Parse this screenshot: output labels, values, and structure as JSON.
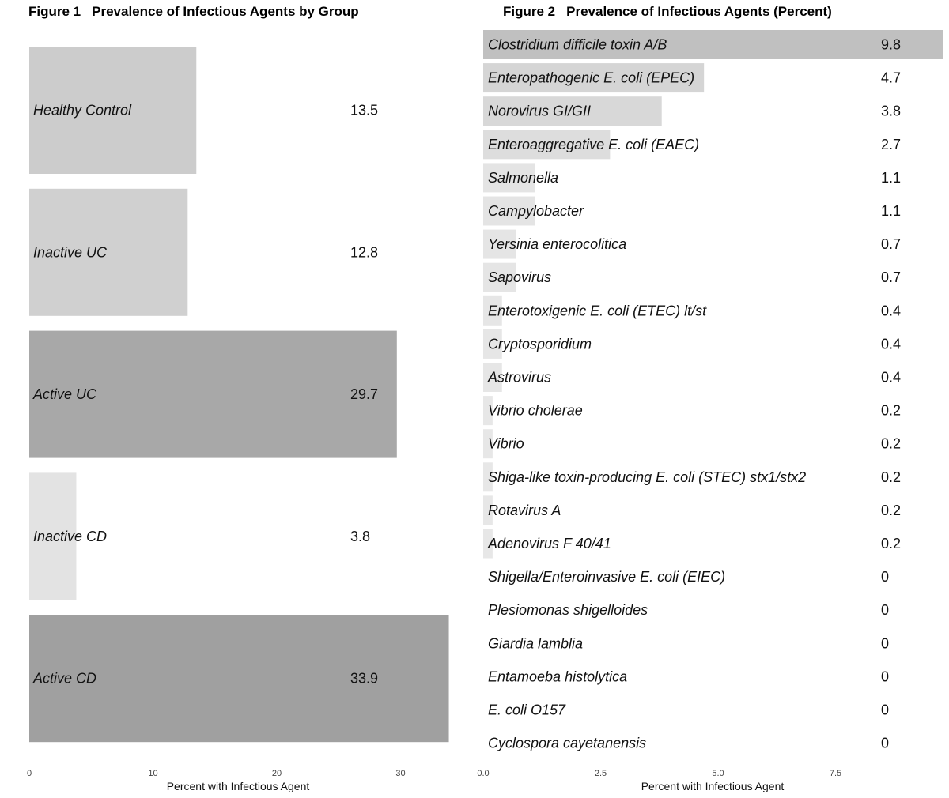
{
  "chart_data": [
    {
      "type": "bar",
      "orientation": "horizontal",
      "figure_number": "Figure 1",
      "title": "Prevalence of Infectious Agents by Group",
      "xlabel": "Percent with Infectious Agent",
      "xlim": [
        0,
        34
      ],
      "xticks": [
        "0",
        "10",
        "20",
        "30"
      ],
      "xtick_values": [
        0,
        10,
        20,
        30
      ],
      "grid": false,
      "categories": [
        "Healthy Control",
        "Inactive UC",
        "Active UC",
        "Inactive CD",
        "Active CD"
      ],
      "values": [
        13.5,
        12.8,
        29.7,
        3.8,
        33.9
      ],
      "value_labels": [
        "13.5",
        "12.8",
        "29.7",
        "3.8",
        "33.9"
      ],
      "bar_colors": [
        "#cccccc",
        "#d0d0d0",
        "#a8a8a8",
        "#e3e3e3",
        "#a0a0a0"
      ]
    },
    {
      "type": "bar",
      "orientation": "horizontal",
      "figure_number": "Figure 2",
      "title": "Prevalence of Infectious Agents (Percent)",
      "xlabel": "Percent with Infectious Agent",
      "xlim": [
        0,
        9.8
      ],
      "xticks": [
        "0.0",
        "2.5",
        "5.0",
        "7.5"
      ],
      "xtick_values": [
        0,
        2.5,
        5.0,
        7.5
      ],
      "grid": false,
      "categories": [
        "Clostridium difficile toxin A/B",
        "Enteropathogenic E. coli (EPEC)",
        "Norovirus GI/GII",
        "Enteroaggregative E. coli (EAEC)",
        "Salmonella",
        "Campylobacter",
        "Yersinia enterocolitica",
        "Sapovirus",
        "Enterotoxigenic E. coli (ETEC) lt/st",
        "Cryptosporidium",
        "Astrovirus",
        "Vibrio cholerae",
        "Vibrio",
        "Shiga-like toxin-producing E. coli (STEC) stx1/stx2",
        "Rotavirus A",
        "Adenovirus F 40/41",
        "Shigella/Enteroinvasive E. coli (EIEC)",
        "Plesiomonas shigelloides",
        "Giardia lamblia",
        "Entamoeba histolytica",
        "E. coli O157",
        "Cyclospora cayetanensis"
      ],
      "values": [
        9.8,
        4.7,
        3.8,
        2.7,
        1.1,
        1.1,
        0.7,
        0.7,
        0.4,
        0.4,
        0.4,
        0.2,
        0.2,
        0.2,
        0.2,
        0.2,
        0,
        0,
        0,
        0,
        0,
        0
      ],
      "value_labels": [
        "9.8",
        "4.7",
        "3.8",
        "2.7",
        "1.1",
        "1.1",
        "0.7",
        "0.7",
        "0.4",
        "0.4",
        "0.4",
        "0.2",
        "0.2",
        "0.2",
        "0.2",
        "0.2",
        "0",
        "0",
        "0",
        "0",
        "0",
        "0"
      ],
      "bar_color_scale": [
        "#e8e8e8",
        "#c0c0c0"
      ]
    }
  ]
}
